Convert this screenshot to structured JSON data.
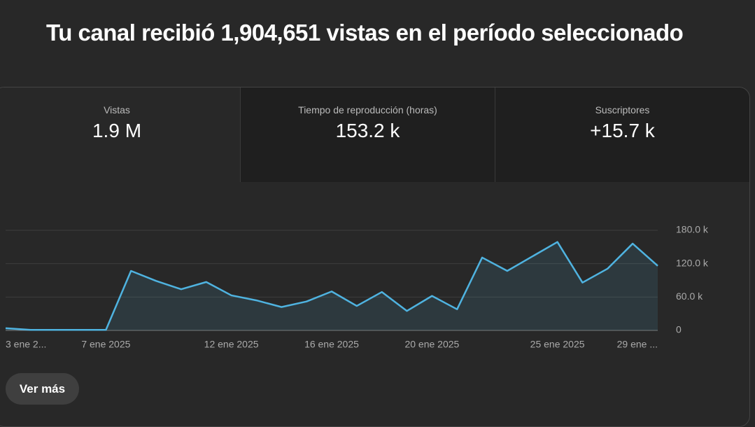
{
  "header": {
    "title": "Tu canal recibió 1,904,651 vistas en el período seleccionado"
  },
  "tabs": [
    {
      "label": "Vistas",
      "value": "1.9 M"
    },
    {
      "label": "Tiempo de reproducción (horas)",
      "value": "153.2 k"
    },
    {
      "label": "Suscriptores",
      "value": "+15.7 k"
    }
  ],
  "chart_data": {
    "type": "line",
    "categories": [
      "3 ene 2...",
      null,
      null,
      null,
      "7 ene 2025",
      null,
      null,
      null,
      null,
      "12 ene 2025",
      null,
      null,
      null,
      "16 ene 2025",
      null,
      null,
      null,
      "20 ene 2025",
      null,
      null,
      null,
      null,
      "25 ene 2025",
      null,
      null,
      null,
      "29 ene ..."
    ],
    "values": [
      4000,
      1000,
      1000,
      1000,
      1000,
      107000,
      89000,
      74000,
      87000,
      63000,
      54000,
      42000,
      52000,
      70000,
      44000,
      69000,
      35000,
      62000,
      38000,
      131000,
      107000,
      133000,
      159000,
      86000,
      111000,
      156000,
      116000
    ],
    "color": "#4fb3e0",
    "ylim": [
      0,
      180000
    ],
    "yticks": [
      0,
      {
        "value": 60000,
        "label": "60.0 k"
      },
      {
        "value": 120000,
        "label": "120.0 k"
      },
      {
        "value": 180000,
        "label": "180.0 k"
      }
    ],
    "grid": true
  },
  "button": {
    "label": "Ver más"
  }
}
